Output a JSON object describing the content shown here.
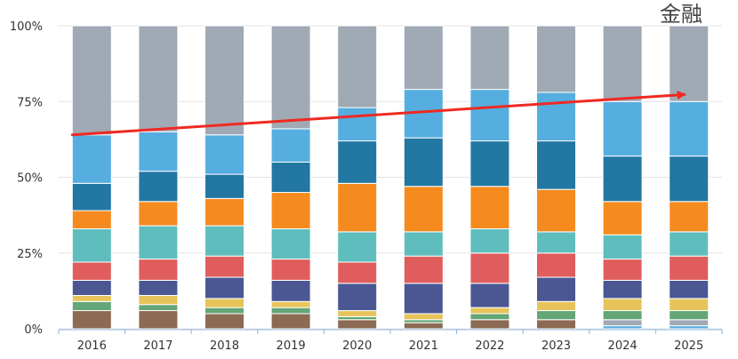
{
  "corner_label": "金融",
  "colors": {
    "gridline": "#e3e3e3",
    "axis": "#8fb5e2",
    "trend_arrow": "#ef2a22",
    "segments": [
      "#56aee0",
      "#a0aab5",
      "#8c6a53",
      "#64a677",
      "#e7c45a",
      "#4a5793",
      "#e05d5d",
      "#5fbdbe",
      "#f58b1f",
      "#2277a3"
    ]
  },
  "chart_data": {
    "type": "bar",
    "stacked": true,
    "title": "",
    "xlabel": "",
    "ylabel": "",
    "ylim": [
      0,
      100
    ],
    "y_ticks": [
      "0%",
      "25%",
      "50%",
      "75%",
      "100%"
    ],
    "categories": [
      "2016",
      "2017",
      "2018",
      "2019",
      "2020",
      "2021",
      "2022",
      "2023",
      "2024",
      "2025"
    ],
    "series": [
      {
        "values": [
          0,
          0,
          0,
          0,
          0,
          0,
          0,
          0,
          1,
          1
        ]
      },
      {
        "values": [
          0,
          0,
          0,
          0,
          0,
          0,
          0,
          0,
          2,
          2
        ]
      },
      {
        "values": [
          6,
          6,
          5,
          5,
          3,
          2,
          3,
          3,
          0,
          0
        ]
      },
      {
        "values": [
          3,
          2,
          2,
          2,
          1,
          1,
          2,
          3,
          3,
          3
        ]
      },
      {
        "values": [
          2,
          3,
          3,
          2,
          2,
          2,
          2,
          3,
          4,
          4
        ]
      },
      {
        "values": [
          5,
          5,
          7,
          7,
          9,
          10,
          8,
          8,
          6,
          6
        ]
      },
      {
        "values": [
          6,
          7,
          7,
          7,
          7,
          9,
          10,
          8,
          7,
          8
        ]
      },
      {
        "values": [
          11,
          11,
          10,
          10,
          10,
          8,
          8,
          7,
          8,
          8
        ]
      },
      {
        "values": [
          6,
          8,
          9,
          12,
          16,
          15,
          14,
          14,
          11,
          10
        ]
      },
      {
        "values": [
          9,
          10,
          8,
          10,
          14,
          16,
          15,
          16,
          15,
          15
        ]
      },
      {
        "values": [
          16,
          13,
          13,
          11,
          11,
          16,
          17,
          16,
          18,
          18
        ]
      },
      {
        "values": [
          36,
          35,
          36,
          34,
          27,
          21,
          21,
          22,
          25,
          25
        ]
      }
    ],
    "trend_arrow": {
      "from": {
        "category": "2016",
        "value": 64
      },
      "to": {
        "category": "2025",
        "value": 77
      }
    }
  }
}
